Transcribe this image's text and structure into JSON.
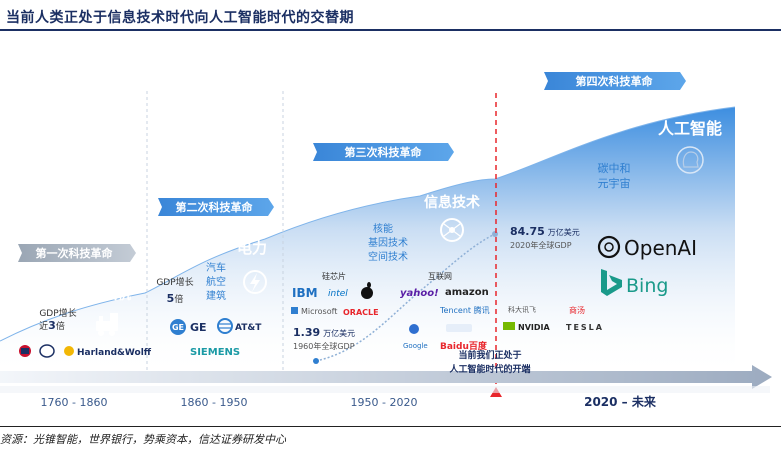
{
  "title": "当前人类正处于信息技术时代向人工智能时代的交替期",
  "source": "资源：光锥智能，世界银行，势乘资本，信达证券研发中心",
  "revolutions": [
    {
      "label": "第一次科技革命",
      "tech": "蒸汽机",
      "stat_line1": "GDP增长",
      "stat_line2_pre": "近",
      "stat_num": "3",
      "stat_suffix": "倍",
      "companies": [
        "Harland&Wolff"
      ],
      "period": "1760 - 1860"
    },
    {
      "label": "第二次科技革命",
      "tech": "电力",
      "stat_line1": "GDP增长",
      "stat_num": "5",
      "stat_suffix": "倍",
      "sub_tech": [
        "汽车",
        "航空",
        "建筑"
      ],
      "companies": [
        "GE",
        "AT&T",
        "SIEMENS"
      ],
      "period": "1860 - 1950"
    },
    {
      "label": "第三次科技革命",
      "tech": "信息技术",
      "sub_tech": [
        "核能",
        "基因技术",
        "空间技术"
      ],
      "group1_label": "硅芯片",
      "group1": [
        "IBM",
        "intel",
        "Microsoft",
        "ORACLE"
      ],
      "group2_label": "互联网",
      "group2": [
        "yahoo!",
        "amazon",
        "Tencent 腾讯",
        "Google",
        "Baidu百度"
      ],
      "gdp_num": "1.39",
      "gdp_unit": "万亿美元",
      "gdp_note": "1960年全球GDP",
      "period": "1950 - 2020"
    },
    {
      "label": "第四次科技革命",
      "tech": "人工智能",
      "sub_tech": [
        "碳中和",
        "元宇宙"
      ],
      "gdp_num": "84.75",
      "gdp_unit": "万亿美元",
      "gdp_note": "2020年全球GDP",
      "companies": [
        "OpenAI",
        "Bing",
        "科大讯飞",
        "商汤",
        "NVIDIA",
        "TESLA"
      ],
      "period": "2020 – 未来"
    }
  ],
  "now_marker": {
    "line1": "当前我们正处于",
    "line2": "人工智能时代的开端"
  },
  "colors": {
    "navy": "#1b2f63",
    "blue": "#2f7fd0",
    "light": "#dce8f6",
    "red": "#e8262c"
  }
}
